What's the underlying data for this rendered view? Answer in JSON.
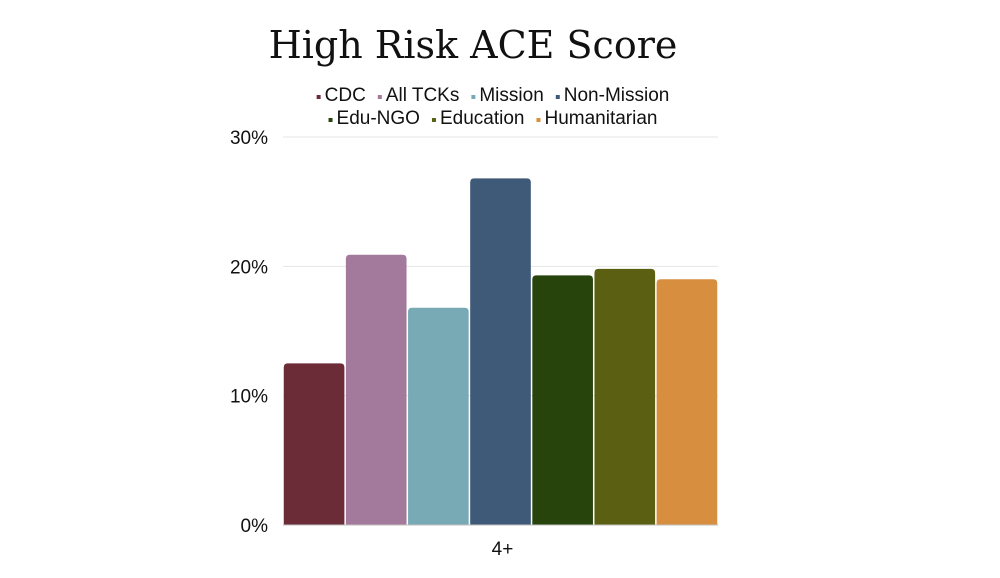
{
  "chart_data": {
    "type": "bar",
    "title": "High Risk ACE Score",
    "categories": [
      "4+"
    ],
    "series": [
      {
        "name": "CDC",
        "values": [
          12.5
        ],
        "color": "#6b2c38"
      },
      {
        "name": "All TCKs",
        "values": [
          20.9
        ],
        "color": "#a47a9c"
      },
      {
        "name": "Mission",
        "values": [
          16.8
        ],
        "color": "#78aab6"
      },
      {
        "name": "Non-Mission",
        "values": [
          26.8
        ],
        "color": "#3f5a78"
      },
      {
        "name": "Edu-NGO",
        "values": [
          19.3
        ],
        "color": "#27440c"
      },
      {
        "name": "Education",
        "values": [
          19.8
        ],
        "color": "#5a5f12"
      },
      {
        "name": "Humanitarian",
        "values": [
          19.0
        ],
        "color": "#d78f3f"
      }
    ],
    "ylim": [
      0,
      30
    ],
    "yticks": [
      0,
      10,
      20,
      30
    ],
    "ytick_labels": [
      "0%",
      "10%",
      "20%",
      "30%"
    ],
    "xlabel": "",
    "ylabel": "",
    "grid": true,
    "legend_position": "top"
  }
}
